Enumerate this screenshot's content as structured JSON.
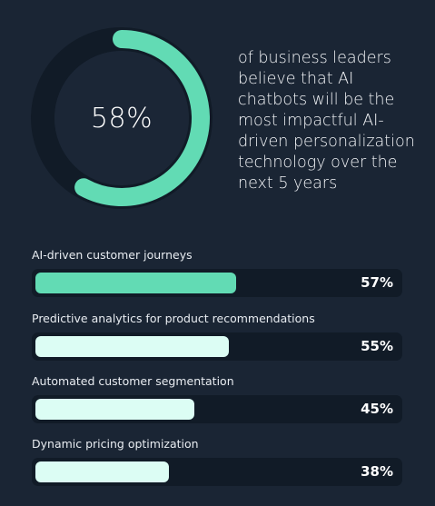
{
  "headline": {
    "value": "58%",
    "text": "of business leaders\nbelieve that AI\nchatbots will be the\nmost impactful AI-\ndriven personalization\ntechnology over the\nnext 5 years"
  },
  "colors": {
    "accent": "#62dbb4",
    "bar_light": "#dcfdf4",
    "track": "#111b27",
    "donut_track": "#111b27",
    "background": "#1a2534"
  },
  "chart_data": [
    {
      "type": "pie",
      "values": [
        58,
        42
      ],
      "labels": [
        "58%",
        ""
      ],
      "title": ""
    },
    {
      "type": "bar",
      "orientation": "horizontal",
      "categories": [
        "AI-driven customer journeys",
        "Predictive analytics for product recommendations",
        "Automated customer segmentation",
        "Dynamic pricing optimization"
      ],
      "values": [
        57,
        55,
        45,
        38
      ],
      "value_labels": [
        "57%",
        "55%",
        "45%",
        "38%"
      ],
      "xlim": [
        0,
        100
      ],
      "grid": false,
      "title": ""
    }
  ]
}
